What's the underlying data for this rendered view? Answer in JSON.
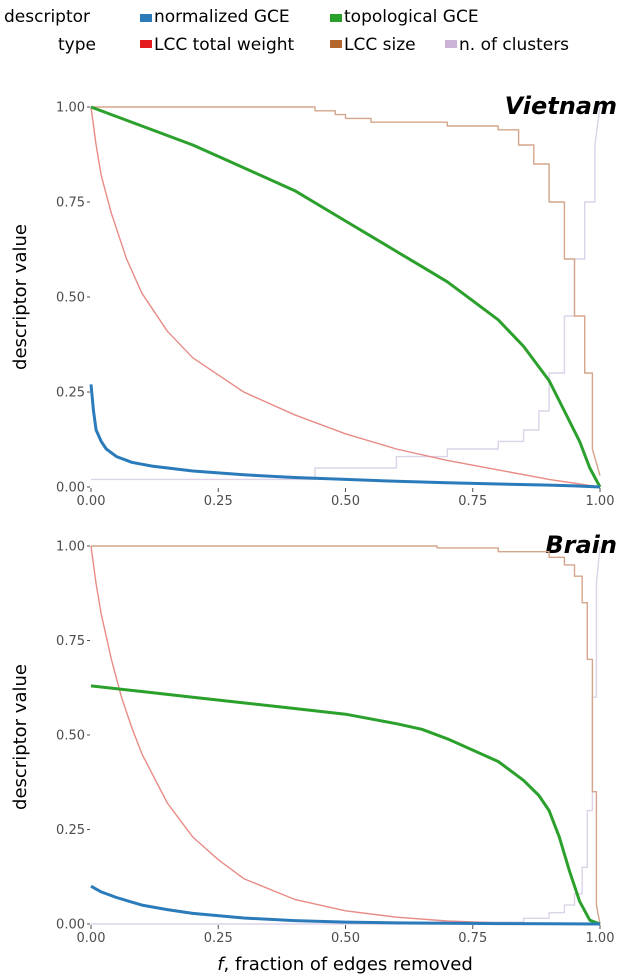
{
  "legend": {
    "title_line1": "descriptor",
    "title_line2": "type",
    "items": [
      {
        "label": "normalized GCE",
        "color": "#2b7bba"
      },
      {
        "label": "topological GCE",
        "color": "#2ca02c"
      },
      {
        "label": "LCC total weight",
        "color": "#e41a1c"
      },
      {
        "label": "LCC size",
        "color": "#b5652e"
      },
      {
        "label": "n. of clusters",
        "color": "#cbb4d8"
      }
    ]
  },
  "x_axis_title": "f, fraction of edges removed",
  "x_axis_title_italic": "f",
  "x_axis_title_rest": ", fraction of edges removed",
  "chart_data": [
    {
      "type": "line",
      "title": "Vietnam",
      "xlabel": "f, fraction of edges removed",
      "ylabel": "descriptor value",
      "xlim": [
        0,
        1
      ],
      "ylim": [
        0,
        1
      ],
      "x_ticks": [
        "0.00",
        "0.25",
        "0.50",
        "0.75",
        "1.00"
      ],
      "y_ticks": [
        "0.00",
        "0.25",
        "0.50",
        "0.75",
        "1.00"
      ],
      "legend_position": "top",
      "grid": false,
      "series": [
        {
          "name": "normalized GCE",
          "color": "#2b7bba",
          "x": [
            0,
            0.005,
            0.01,
            0.02,
            0.03,
            0.05,
            0.08,
            0.12,
            0.2,
            0.3,
            0.4,
            0.5,
            0.6,
            0.7,
            0.8,
            0.9,
            0.95,
            1.0
          ],
          "y": [
            0.27,
            0.2,
            0.15,
            0.12,
            0.1,
            0.08,
            0.065,
            0.055,
            0.042,
            0.032,
            0.025,
            0.02,
            0.015,
            0.011,
            0.008,
            0.005,
            0.003,
            0.0
          ]
        },
        {
          "name": "topological GCE",
          "color": "#2ca02c",
          "x": [
            0,
            0.1,
            0.2,
            0.25,
            0.3,
            0.4,
            0.5,
            0.55,
            0.6,
            0.65,
            0.7,
            0.75,
            0.8,
            0.85,
            0.9,
            0.93,
            0.96,
            0.98,
            1.0
          ],
          "y": [
            1.0,
            0.95,
            0.9,
            0.87,
            0.84,
            0.78,
            0.7,
            0.66,
            0.62,
            0.58,
            0.54,
            0.49,
            0.44,
            0.37,
            0.28,
            0.2,
            0.12,
            0.05,
            0.0
          ]
        },
        {
          "name": "LCC total weight",
          "color": "#e88b86",
          "x": [
            0,
            0.01,
            0.02,
            0.04,
            0.07,
            0.1,
            0.15,
            0.2,
            0.3,
            0.4,
            0.5,
            0.6,
            0.7,
            0.8,
            0.9,
            1.0
          ],
          "y": [
            1.0,
            0.9,
            0.82,
            0.72,
            0.6,
            0.51,
            0.41,
            0.34,
            0.25,
            0.19,
            0.14,
            0.1,
            0.07,
            0.045,
            0.02,
            0.0
          ]
        },
        {
          "name": "LCC size",
          "color": "#d4a58a",
          "x": [
            0,
            0.44,
            0.44,
            0.48,
            0.48,
            0.5,
            0.5,
            0.55,
            0.55,
            0.7,
            0.7,
            0.8,
            0.8,
            0.84,
            0.84,
            0.87,
            0.87,
            0.9,
            0.9,
            0.93,
            0.93,
            0.95,
            0.95,
            0.97,
            0.97,
            0.985,
            0.985,
            1.0
          ],
          "y": [
            1.0,
            1.0,
            0.99,
            0.99,
            0.98,
            0.98,
            0.97,
            0.97,
            0.96,
            0.96,
            0.95,
            0.95,
            0.94,
            0.94,
            0.9,
            0.9,
            0.85,
            0.85,
            0.75,
            0.75,
            0.6,
            0.6,
            0.45,
            0.45,
            0.3,
            0.3,
            0.1,
            0.03
          ]
        },
        {
          "name": "n. of clusters",
          "color": "#dcd3e8",
          "x": [
            0,
            0.44,
            0.44,
            0.6,
            0.6,
            0.7,
            0.7,
            0.8,
            0.8,
            0.85,
            0.85,
            0.88,
            0.88,
            0.9,
            0.9,
            0.93,
            0.93,
            0.95,
            0.95,
            0.97,
            0.97,
            0.99,
            0.99,
            1.0
          ],
          "y": [
            0.02,
            0.02,
            0.05,
            0.05,
            0.08,
            0.08,
            0.1,
            0.1,
            0.12,
            0.12,
            0.15,
            0.15,
            0.2,
            0.2,
            0.3,
            0.3,
            0.45,
            0.45,
            0.6,
            0.6,
            0.75,
            0.75,
            0.9,
            1.0
          ]
        }
      ]
    },
    {
      "type": "line",
      "title": "Brain",
      "xlabel": "f, fraction of edges removed",
      "ylabel": "descriptor value",
      "xlim": [
        0,
        1
      ],
      "ylim": [
        0,
        1
      ],
      "x_ticks": [
        "0.00",
        "0.25",
        "0.50",
        "0.75",
        "1.00"
      ],
      "y_ticks": [
        "0.00",
        "0.25",
        "0.50",
        "0.75",
        "1.00"
      ],
      "legend_position": "top",
      "grid": false,
      "series": [
        {
          "name": "normalized GCE",
          "color": "#2b7bba",
          "x": [
            0,
            0.02,
            0.05,
            0.1,
            0.15,
            0.2,
            0.3,
            0.4,
            0.5,
            0.6,
            0.7,
            0.8,
            0.9,
            1.0
          ],
          "y": [
            0.1,
            0.085,
            0.07,
            0.05,
            0.038,
            0.028,
            0.016,
            0.009,
            0.005,
            0.003,
            0.002,
            0.001,
            0.0005,
            0.0
          ]
        },
        {
          "name": "topological GCE",
          "color": "#2ca02c",
          "x": [
            0,
            0.1,
            0.2,
            0.3,
            0.4,
            0.5,
            0.6,
            0.65,
            0.7,
            0.75,
            0.8,
            0.85,
            0.88,
            0.9,
            0.92,
            0.94,
            0.96,
            0.98,
            1.0
          ],
          "y": [
            0.63,
            0.615,
            0.6,
            0.585,
            0.57,
            0.555,
            0.53,
            0.515,
            0.49,
            0.46,
            0.43,
            0.38,
            0.34,
            0.3,
            0.23,
            0.14,
            0.06,
            0.01,
            0.0
          ]
        },
        {
          "name": "LCC total weight",
          "color": "#e88b86",
          "x": [
            0,
            0.01,
            0.02,
            0.04,
            0.06,
            0.08,
            0.1,
            0.15,
            0.2,
            0.25,
            0.3,
            0.4,
            0.5,
            0.6,
            0.7,
            0.8,
            0.9,
            1.0
          ],
          "y": [
            1.0,
            0.9,
            0.82,
            0.7,
            0.6,
            0.52,
            0.45,
            0.32,
            0.23,
            0.17,
            0.12,
            0.065,
            0.035,
            0.018,
            0.008,
            0.003,
            0.001,
            0.0
          ]
        },
        {
          "name": "LCC size",
          "color": "#d4a58a",
          "x": [
            0,
            0.68,
            0.68,
            0.8,
            0.8,
            0.9,
            0.9,
            0.93,
            0.93,
            0.95,
            0.95,
            0.965,
            0.965,
            0.975,
            0.975,
            0.985,
            0.985,
            0.993,
            0.993,
            1.0
          ],
          "y": [
            1.0,
            1.0,
            0.995,
            0.995,
            0.985,
            0.985,
            0.97,
            0.97,
            0.95,
            0.95,
            0.92,
            0.92,
            0.85,
            0.85,
            0.7,
            0.7,
            0.35,
            0.35,
            0.05,
            0.0
          ]
        },
        {
          "name": "n. of clusters",
          "color": "#dcd3e8",
          "x": [
            0,
            0.68,
            0.68,
            0.85,
            0.85,
            0.9,
            0.9,
            0.93,
            0.93,
            0.95,
            0.95,
            0.965,
            0.965,
            0.975,
            0.975,
            0.985,
            0.985,
            0.993,
            0.993,
            1.0
          ],
          "y": [
            0.0,
            0.0,
            0.005,
            0.005,
            0.015,
            0.015,
            0.03,
            0.03,
            0.05,
            0.05,
            0.08,
            0.08,
            0.15,
            0.15,
            0.3,
            0.3,
            0.6,
            0.6,
            0.9,
            1.0
          ]
        }
      ]
    }
  ]
}
